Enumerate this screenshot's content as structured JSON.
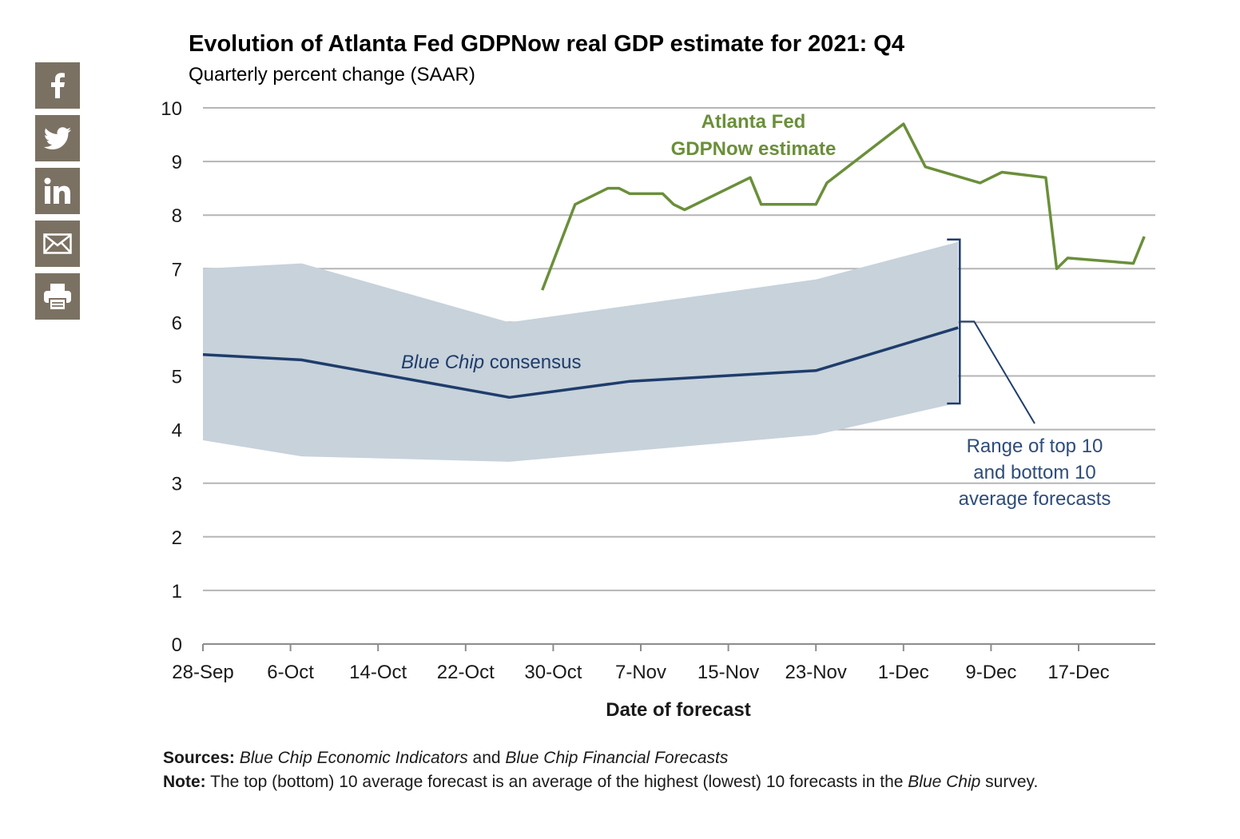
{
  "share": {
    "icons": [
      "facebook-icon",
      "twitter-icon",
      "linkedin-icon",
      "email-icon",
      "print-icon"
    ],
    "button_color": "#7b7163"
  },
  "chart_data": {
    "type": "line",
    "title": "Evolution of Atlanta Fed GDPNow real GDP estimate for 2021: Q4",
    "subtitle": "Quarterly percent change (SAAR)",
    "xlabel": "Date of forecast",
    "ylabel": "",
    "ylim": [
      0,
      10
    ],
    "yticks": [
      0,
      1,
      2,
      3,
      4,
      5,
      6,
      7,
      8,
      9,
      10
    ],
    "xlim": [
      "2021-09-28",
      "2021-12-23"
    ],
    "xticks": [
      {
        "date": "2021-09-28",
        "label": "28-Sep"
      },
      {
        "date": "2021-10-06",
        "label": "6-Oct"
      },
      {
        "date": "2021-10-14",
        "label": "14-Oct"
      },
      {
        "date": "2021-10-22",
        "label": "22-Oct"
      },
      {
        "date": "2021-10-30",
        "label": "30-Oct"
      },
      {
        "date": "2021-11-07",
        "label": "7-Nov"
      },
      {
        "date": "2021-11-15",
        "label": "15-Nov"
      },
      {
        "date": "2021-11-23",
        "label": "23-Nov"
      },
      {
        "date": "2021-12-01",
        "label": "1-Dec"
      },
      {
        "date": "2021-12-09",
        "label": "9-Dec"
      },
      {
        "date": "2021-12-17",
        "label": "17-Dec"
      }
    ],
    "grid": true,
    "colors": {
      "gdpnow": "#6a8f3a",
      "consensus": "#1f3d6b",
      "range_fill": "#c7d2db",
      "range_label": "#2e4d7a",
      "gridline": "#b5b5b5"
    },
    "series": [
      {
        "name": "Atlanta Fed GDPNow estimate",
        "label_lines": [
          "Atlanta Fed",
          "GDPNow estimate"
        ],
        "points": [
          {
            "x": "2021-10-29",
            "y": 6.6
          },
          {
            "x": "2021-11-01",
            "y": 8.2
          },
          {
            "x": "2021-11-04",
            "y": 8.5
          },
          {
            "x": "2021-11-05",
            "y": 8.5
          },
          {
            "x": "2021-11-06",
            "y": 8.4
          },
          {
            "x": "2021-11-09",
            "y": 8.4
          },
          {
            "x": "2021-11-10",
            "y": 8.2
          },
          {
            "x": "2021-11-11",
            "y": 8.1
          },
          {
            "x": "2021-11-17",
            "y": 8.7
          },
          {
            "x": "2021-11-18",
            "y": 8.2
          },
          {
            "x": "2021-11-23",
            "y": 8.2
          },
          {
            "x": "2021-11-24",
            "y": 8.6
          },
          {
            "x": "2021-12-01",
            "y": 9.7
          },
          {
            "x": "2021-12-03",
            "y": 8.9
          },
          {
            "x": "2021-12-08",
            "y": 8.6
          },
          {
            "x": "2021-12-09",
            "y": 8.7
          },
          {
            "x": "2021-12-10",
            "y": 8.8
          },
          {
            "x": "2021-12-14",
            "y": 8.7
          },
          {
            "x": "2021-12-15",
            "y": 7.0
          },
          {
            "x": "2021-12-16",
            "y": 7.2
          },
          {
            "x": "2021-12-22",
            "y": 7.1
          },
          {
            "x": "2021-12-23",
            "y": 7.6
          }
        ]
      },
      {
        "name": "Blue Chip consensus",
        "points": [
          {
            "x": "2021-09-28",
            "y": 5.4
          },
          {
            "x": "2021-10-07",
            "y": 5.3
          },
          {
            "x": "2021-10-26",
            "y": 4.6
          },
          {
            "x": "2021-11-06",
            "y": 4.9
          },
          {
            "x": "2021-11-23",
            "y": 5.1
          },
          {
            "x": "2021-12-06",
            "y": 5.9
          }
        ]
      },
      {
        "name": "Range of top 10 and bottom 10 average forecasts",
        "label_lines": [
          "Range of top 10",
          "and bottom 10",
          "average forecasts"
        ],
        "type": "area-band",
        "points": [
          {
            "x": "2021-09-28",
            "high": 7.0,
            "low": 3.8
          },
          {
            "x": "2021-10-07",
            "high": 7.1,
            "low": 3.5
          },
          {
            "x": "2021-10-26",
            "high": 6.0,
            "low": 3.4
          },
          {
            "x": "2021-11-23",
            "high": 6.8,
            "low": 3.9
          },
          {
            "x": "2021-12-06",
            "high": 7.5,
            "low": 4.5
          }
        ]
      }
    ],
    "annotations": {
      "consensus_label_italic": "Blue Chip",
      "consensus_label_rest": " consensus"
    }
  },
  "notes": {
    "sources_label": "Sources:",
    "sources_text_1": "Blue Chip Economic Indicators",
    "sources_and": " and ",
    "sources_text_2": "Blue Chip Financial Forecasts",
    "note_label": "Note:",
    "note_text_1": " The top (bottom) 10 average forecast is an average of the highest (lowest) 10 forecasts in the ",
    "note_text_italic": "Blue Chip",
    "note_text_2": " survey."
  }
}
